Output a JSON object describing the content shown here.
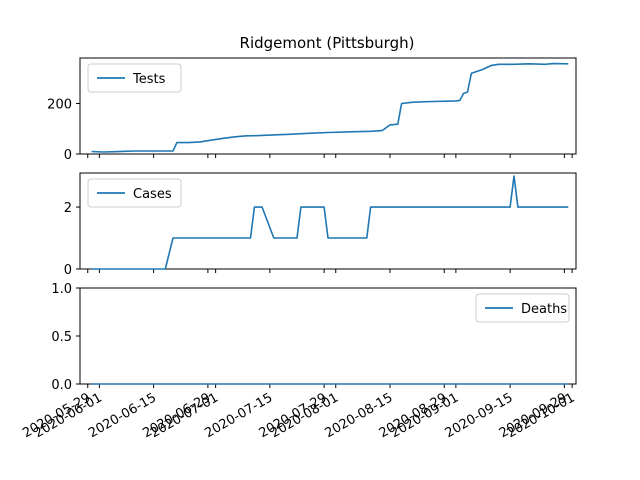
{
  "figure": {
    "title": "Ridgemont (Pittsburgh)",
    "line_color": "#1f77b4"
  },
  "x_axis": {
    "tick_labels": [
      "2020-05-29",
      "2020-06-01",
      "2020-06-15",
      "2020-06-29",
      "2020-07-01",
      "2020-07-15",
      "2020-07-29",
      "2020-08-01",
      "2020-08-15",
      "2020-08-29",
      "2020-09-01",
      "2020-09-15",
      "2020-09-29",
      "2020-10-01"
    ],
    "tick_dates": [
      "2020-05-29",
      "2020-06-01",
      "2020-06-15",
      "2020-06-29",
      "2020-07-01",
      "2020-07-15",
      "2020-07-29",
      "2020-08-01",
      "2020-08-15",
      "2020-08-29",
      "2020-09-01",
      "2020-09-15",
      "2020-09-29",
      "2020-10-01"
    ]
  },
  "chart_data": [
    {
      "type": "line",
      "legend": "Tests",
      "legend_position": "upper-left",
      "xlim": [
        "2020-05-27",
        "2020-10-02"
      ],
      "ylim": [
        0,
        380
      ],
      "ytick_labels": [
        "0",
        "200"
      ],
      "ytick_values": [
        0,
        200
      ],
      "series": [
        {
          "name": "Tests",
          "x": [
            "2020-05-30",
            "2020-06-02",
            "2020-06-05",
            "2020-06-10",
            "2020-06-15",
            "2020-06-20",
            "2020-06-21",
            "2020-06-24",
            "2020-06-27",
            "2020-06-30",
            "2020-07-03",
            "2020-07-06",
            "2020-07-09",
            "2020-07-12",
            "2020-07-15",
            "2020-07-20",
            "2020-07-25",
            "2020-07-30",
            "2020-08-05",
            "2020-08-10",
            "2020-08-13",
            "2020-08-15",
            "2020-08-17",
            "2020-08-18",
            "2020-08-21",
            "2020-08-26",
            "2020-09-01",
            "2020-09-02",
            "2020-09-03",
            "2020-09-04",
            "2020-09-05",
            "2020-09-08",
            "2020-09-10",
            "2020-09-12",
            "2020-09-16",
            "2020-09-20",
            "2020-09-24",
            "2020-09-26",
            "2020-09-30"
          ],
          "y": [
            10,
            8,
            9,
            12,
            12,
            12,
            45,
            45,
            48,
            55,
            62,
            68,
            72,
            73,
            75,
            78,
            82,
            85,
            88,
            90,
            93,
            115,
            118,
            200,
            205,
            208,
            210,
            212,
            240,
            245,
            320,
            335,
            350,
            355,
            355,
            357,
            355,
            358,
            357
          ]
        }
      ]
    },
    {
      "type": "line",
      "legend": "Cases",
      "legend_position": "upper-left",
      "xlim": [
        "2020-05-27",
        "2020-10-02"
      ],
      "ylim": [
        0,
        3.1
      ],
      "ytick_labels": [
        "0",
        "2"
      ],
      "ytick_values": [
        0,
        2
      ],
      "series": [
        {
          "name": "Cases",
          "x": [
            "2020-05-30",
            "2020-06-18",
            "2020-06-20",
            "2020-07-10",
            "2020-07-11",
            "2020-07-13",
            "2020-07-16",
            "2020-07-22",
            "2020-07-23",
            "2020-07-29",
            "2020-07-30",
            "2020-08-09",
            "2020-08-10",
            "2020-09-15",
            "2020-09-16",
            "2020-09-17",
            "2020-09-30"
          ],
          "y": [
            0,
            0,
            1,
            1,
            2,
            2,
            1,
            1,
            2,
            2,
            1,
            1,
            2,
            2,
            3,
            2,
            2
          ]
        }
      ]
    },
    {
      "type": "line",
      "legend": "Deaths",
      "legend_position": "upper-right",
      "xlim": [
        "2020-05-27",
        "2020-10-02"
      ],
      "ylim": [
        0,
        1.0
      ],
      "ytick_labels": [
        "0.0",
        "0.5",
        "1.0"
      ],
      "ytick_values": [
        0,
        0.5,
        1.0
      ],
      "series": [
        {
          "name": "Deaths",
          "x": [
            "2020-05-30",
            "2020-09-30"
          ],
          "y": [
            0,
            0
          ]
        }
      ]
    }
  ]
}
